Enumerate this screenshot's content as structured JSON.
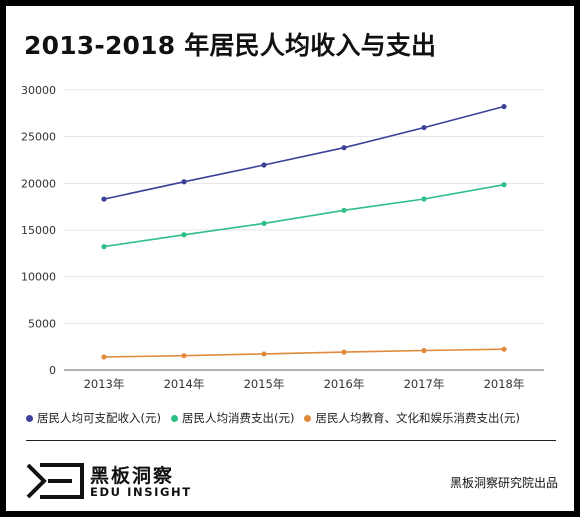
{
  "title": "2013-2018 年居民人均收入与支出",
  "chart_data": {
    "type": "line",
    "x": [
      "2013年",
      "2014年",
      "2015年",
      "2016年",
      "2017年",
      "2018年"
    ],
    "ylim": [
      0,
      30000
    ],
    "yticks": [
      "0",
      "5000",
      "10000",
      "15000",
      "20000",
      "25000",
      "30000"
    ],
    "grid": true,
    "legend": "bottom",
    "series": [
      {
        "name": "居民人均可支配收入(元)",
        "color": "#3b4199",
        "values": [
          18311,
          20167,
          21966,
          23821,
          25974,
          28228
        ]
      },
      {
        "name": "居民人均消费支出(元)",
        "color": "#2dbf86",
        "values": [
          13220,
          14491,
          15712,
          17111,
          18322,
          19853
        ]
      },
      {
        "name": "居民人均教育、文化和娱乐消费支出(元)",
        "color": "#e08a3c",
        "values": [
          1398,
          1536,
          1723,
          1915,
          2086,
          2226
        ]
      }
    ]
  },
  "footer": {
    "brand_cn": "黑板洞察",
    "brand_en": "EDU INSIGHT",
    "credit": "黑板洞察研究院出品"
  }
}
